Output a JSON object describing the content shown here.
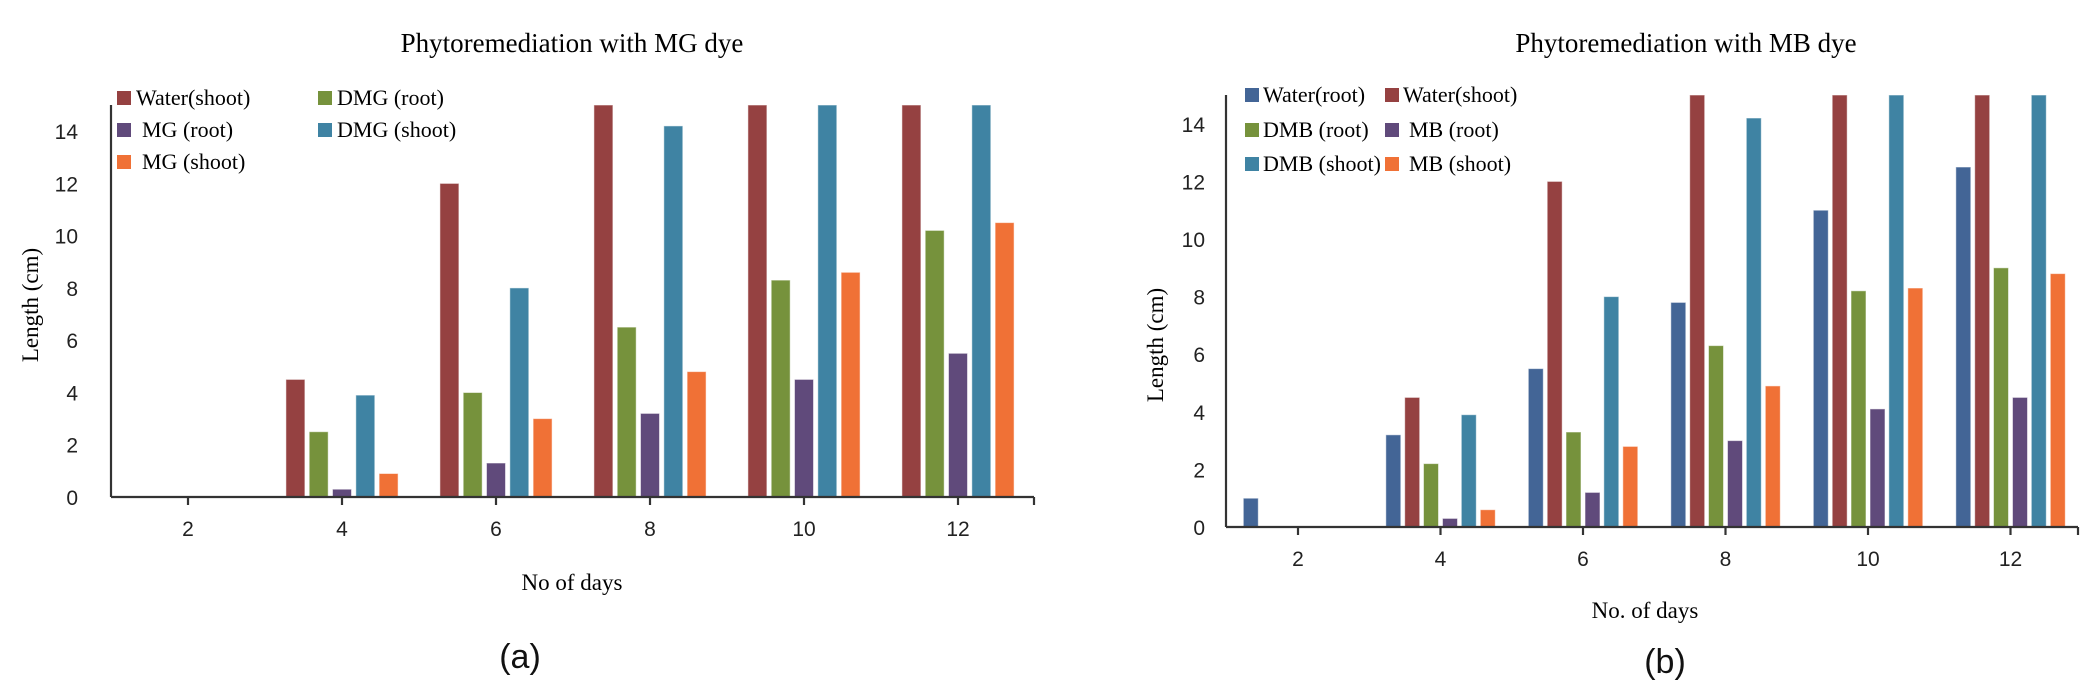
{
  "chart_data": [
    {
      "type": "bar",
      "title": "Phytoremediation with MG dye",
      "xlabel": "No of days",
      "ylabel": "Length (cm)",
      "panel_label": "(a)",
      "categories": [
        "2",
        "4",
        "6",
        "8",
        "10",
        "12"
      ],
      "yticks": [
        "0",
        "2",
        "4",
        "6",
        "8",
        "10",
        "12",
        "14"
      ],
      "ylim": [
        0,
        15
      ],
      "grid": false,
      "legend_position": "top-left",
      "series": [
        {
          "name": "Water(shoot)",
          "color": "#954141",
          "values": [
            0,
            4.5,
            12,
            15,
            15,
            15
          ]
        },
        {
          "name": "DMG (root)",
          "color": "#76923c",
          "values": [
            0,
            2.5,
            4,
            6.5,
            8.3,
            10.2
          ]
        },
        {
          "name": "MG (root)",
          "color": "#604a7b",
          "values": [
            0,
            0.3,
            1.3,
            3.2,
            4.5,
            5.5
          ]
        },
        {
          "name": "DMG (shoot)",
          "color": "#3f83a3",
          "values": [
            0,
            3.9,
            8,
            14.2,
            15,
            15
          ]
        },
        {
          "name": "MG (shoot)",
          "color": "#f07136",
          "values": [
            0,
            0.9,
            3,
            4.8,
            8.6,
            10.5
          ]
        }
      ],
      "legend_order": [
        "Water(shoot)",
        "DMG (root)",
        "MG (root)",
        "DMG (shoot)",
        "MG (shoot)"
      ]
    },
    {
      "type": "bar",
      "title": "Phytoremediation with MB dye",
      "xlabel": "No. of days",
      "ylabel": "Length (cm)",
      "panel_label": "(b)",
      "categories": [
        "2",
        "4",
        "6",
        "8",
        "10",
        "12"
      ],
      "yticks": [
        "0",
        "2",
        "4",
        "6",
        "8",
        "10",
        "12",
        "14"
      ],
      "ylim": [
        0,
        15
      ],
      "grid": false,
      "legend_position": "top-left",
      "series": [
        {
          "name": "Water(root)",
          "color": "#436596",
          "values": [
            1,
            3.2,
            5.5,
            7.8,
            11,
            12.5
          ]
        },
        {
          "name": "Water(shoot)",
          "color": "#954141",
          "values": [
            0,
            4.5,
            12,
            15,
            15,
            15
          ]
        },
        {
          "name": "DMB (root)",
          "color": "#76923c",
          "values": [
            0,
            2.2,
            3.3,
            6.3,
            8.2,
            9
          ]
        },
        {
          "name": "MB (root)",
          "color": "#604a7b",
          "values": [
            0,
            0.3,
            1.2,
            3,
            4.1,
            4.5
          ]
        },
        {
          "name": "DMB (shoot)",
          "color": "#3f83a3",
          "values": [
            0,
            3.9,
            8,
            14.2,
            15,
            15
          ]
        },
        {
          "name": "MB (shoot)",
          "color": "#f07136",
          "values": [
            0,
            0.6,
            2.8,
            4.9,
            8.3,
            8.8
          ]
        }
      ],
      "legend_order": [
        "Water(root)",
        "Water(shoot)",
        "DMB (root)",
        "MB (root)",
        "DMB (shoot)",
        "MB (shoot)"
      ]
    }
  ]
}
